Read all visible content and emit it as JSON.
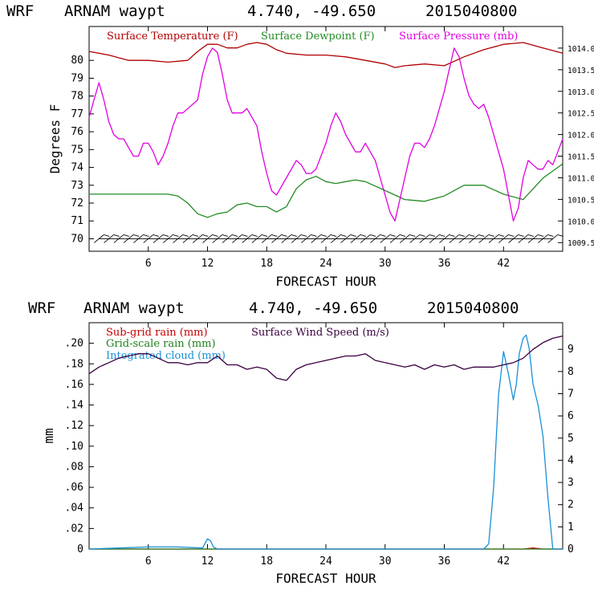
{
  "colors": {
    "temperature": "#b00000",
    "dewpoint": "#228B22",
    "pressure": "#e000e0",
    "subgrid_rain": "#c80000",
    "gridscale_rain": "#208020",
    "cloud": "#1a8fd6",
    "wind": "#3a0040",
    "barb": "#000000"
  },
  "chart_data": [
    {
      "type": "line",
      "header": {
        "model": "WRF",
        "station": "ARNAM waypt",
        "coords": "4.740, -49.650",
        "init": "2015040800"
      },
      "title": "WRF   ARNAM waypt    4.740, -49.650  2015040800",
      "xlabel": "FORECAST HOUR",
      "ylabel": "Degrees F",
      "xlim": [
        0,
        48
      ],
      "ylim": [
        69.3,
        81.9
      ],
      "xticks": [
        6,
        12,
        18,
        24,
        30,
        36,
        42
      ],
      "xtick_labels": [
        "6",
        "12",
        "18",
        "24",
        "30",
        "36",
        "42"
      ],
      "yticks": [
        70,
        71,
        72,
        73,
        74,
        75,
        76,
        77,
        78,
        79,
        80
      ],
      "ytick_labels": [
        "70",
        "71",
        "72",
        "73",
        "74",
        "75",
        "76",
        "77",
        "78",
        "79",
        "80"
      ],
      "y2lim": [
        1009.3,
        1014.5
      ],
      "y2ticks": [
        1009.5,
        1010.0,
        1010.5,
        1011.0,
        1011.5,
        1012.0,
        1012.5,
        1013.0,
        1013.5,
        1014.0
      ],
      "y2tick_labels": [
        "1009.5",
        "1010.0",
        "1010.5",
        "1011.0",
        "1011.5",
        "1012.0",
        "1012.5",
        "1013.0",
        "1013.5",
        "1014.0"
      ],
      "legend": [
        "Surface Temperature (F)",
        "Surface Dewpoint (F)",
        "Surface Pressure (mb)"
      ],
      "series": [
        {
          "name": "Surface Temperature (F)",
          "axis": "left",
          "color_key": "temperature",
          "x": [
            0,
            2,
            4,
            6,
            8,
            10,
            11,
            12,
            13,
            14,
            15,
            16,
            17,
            18,
            19,
            20,
            22,
            24,
            26,
            28,
            30,
            31,
            32,
            34,
            36,
            38,
            40,
            42,
            44,
            46,
            48
          ],
          "values": [
            80.5,
            80.3,
            80.0,
            80.0,
            79.9,
            80.0,
            80.5,
            80.9,
            80.9,
            80.7,
            80.7,
            80.9,
            81.0,
            80.9,
            80.6,
            80.4,
            80.3,
            80.3,
            80.2,
            80.0,
            79.8,
            79.6,
            79.7,
            79.8,
            79.7,
            80.2,
            80.6,
            80.9,
            81.0,
            80.7,
            80.4
          ]
        },
        {
          "name": "Surface Dewpoint (F)",
          "axis": "left",
          "color_key": "dewpoint",
          "x": [
            0,
            2,
            4,
            6,
            8,
            9,
            10,
            11,
            12,
            13,
            14,
            15,
            16,
            17,
            18,
            19,
            20,
            21,
            22,
            23,
            24,
            25,
            26,
            27,
            28,
            30,
            32,
            34,
            36,
            38,
            40,
            42,
            44,
            46,
            48
          ],
          "values": [
            72.5,
            72.5,
            72.5,
            72.5,
            72.5,
            72.4,
            72.0,
            71.4,
            71.2,
            71.4,
            71.5,
            71.9,
            72.0,
            71.8,
            71.8,
            71.5,
            71.8,
            72.8,
            73.3,
            73.5,
            73.2,
            73.1,
            73.2,
            73.3,
            73.2,
            72.7,
            72.2,
            72.1,
            72.4,
            73.0,
            73.0,
            72.5,
            72.2,
            73.4,
            74.2
          ]
        },
        {
          "name": "Surface Pressure (mb)",
          "axis": "right",
          "color_key": "pressure",
          "x": [
            0,
            0.5,
            1,
            1.5,
            2,
            2.5,
            3,
            3.5,
            4,
            4.5,
            5,
            5.5,
            6,
            6.5,
            7,
            7.5,
            8,
            8.5,
            9,
            9.5,
            10,
            10.5,
            11,
            11.5,
            12,
            12.5,
            13,
            13.5,
            14,
            14.5,
            15,
            15.5,
            16,
            16.5,
            17,
            17.5,
            18,
            18.5,
            19,
            19.5,
            20,
            20.5,
            21,
            21.5,
            22,
            22.5,
            23,
            23.5,
            24,
            24.5,
            25,
            25.5,
            26,
            26.5,
            27,
            27.5,
            28,
            28.5,
            29,
            29.5,
            30,
            30.5,
            31,
            31.5,
            32,
            32.5,
            33,
            33.5,
            34,
            34.5,
            35,
            35.5,
            36,
            36.5,
            37,
            37.5,
            38,
            38.5,
            39,
            39.5,
            40,
            40.5,
            41,
            41.5,
            42,
            42.5,
            43,
            43.5,
            44,
            44.5,
            45,
            45.5,
            46,
            46.5,
            47,
            47.5,
            48
          ],
          "values": [
            1012.4,
            1012.8,
            1013.2,
            1012.8,
            1012.3,
            1012.0,
            1011.9,
            1011.9,
            1011.7,
            1011.5,
            1011.5,
            1011.8,
            1011.8,
            1011.6,
            1011.3,
            1011.5,
            1011.8,
            1012.2,
            1012.5,
            1012.5,
            1012.6,
            1012.7,
            1012.8,
            1013.4,
            1013.8,
            1014.0,
            1013.9,
            1013.4,
            1012.8,
            1012.5,
            1012.5,
            1012.5,
            1012.6,
            1012.4,
            1012.2,
            1011.6,
            1011.1,
            1010.7,
            1010.6,
            1010.8,
            1011.0,
            1011.2,
            1011.4,
            1011.3,
            1011.1,
            1011.1,
            1011.2,
            1011.5,
            1011.8,
            1012.2,
            1012.5,
            1012.3,
            1012.0,
            1011.8,
            1011.6,
            1011.6,
            1011.8,
            1011.6,
            1011.4,
            1011.0,
            1010.6,
            1010.2,
            1010.0,
            1010.5,
            1011.0,
            1011.5,
            1011.8,
            1011.8,
            1011.7,
            1011.9,
            1012.2,
            1012.6,
            1013.0,
            1013.5,
            1014.0,
            1013.8,
            1013.3,
            1012.9,
            1012.7,
            1012.6,
            1012.7,
            1012.4,
            1012.0,
            1011.6,
            1011.2,
            1010.6,
            1010.0,
            1010.3,
            1011.0,
            1011.4,
            1011.3,
            1011.2,
            1011.2,
            1011.4,
            1011.3,
            1011.6,
            1011.9
          ]
        }
      ],
      "annotations": [
        "wind barbs along 70 F line, winds from the east"
      ]
    },
    {
      "type": "line",
      "header": {
        "model": "WRF",
        "station": "ARNAM waypt",
        "coords": "4.740, -49.650",
        "init": "2015040800"
      },
      "title": "WRF   ARNAM waypt    4.740, -49.650  2015040800",
      "xlabel": "FORECAST HOUR",
      "ylabel": "mm",
      "xlim": [
        0,
        48
      ],
      "ylim": [
        0,
        0.22
      ],
      "xticks": [
        6,
        12,
        18,
        24,
        30,
        36,
        42
      ],
      "xtick_labels": [
        "6",
        "12",
        "18",
        "24",
        "30",
        "36",
        "42"
      ],
      "yticks": [
        0,
        0.02,
        0.04,
        0.06,
        0.08,
        0.1,
        0.12,
        0.14,
        0.16,
        0.18,
        0.2
      ],
      "ytick_labels": [
        "0",
        ".02",
        ".04",
        ".06",
        ".08",
        ".10",
        ".12",
        ".14",
        ".16",
        ".18",
        ".20"
      ],
      "y2lim": [
        0,
        10.2
      ],
      "y2ticks": [
        0,
        1,
        2,
        3,
        4,
        5,
        6,
        7,
        8,
        9
      ],
      "y2tick_labels": [
        "0",
        "1",
        "2",
        "3",
        "4",
        "5",
        "6",
        "7",
        "8",
        "9"
      ],
      "legend": [
        "Sub-grid rain (mm)",
        "Grid-scale rain (mm)",
        "Integrated cloud (mm)",
        "Surface Wind Speed (m/s)"
      ],
      "series": [
        {
          "name": "Sub-grid rain (mm)",
          "axis": "left",
          "color_key": "subgrid_rain",
          "x": [
            0,
            44,
            45,
            46,
            48
          ],
          "values": [
            0,
            0,
            0.001,
            0,
            0
          ]
        },
        {
          "name": "Grid-scale rain (mm)",
          "axis": "left",
          "color_key": "gridscale_rain",
          "x": [
            0,
            48
          ],
          "values": [
            0,
            0
          ]
        },
        {
          "name": "Integrated cloud (mm)",
          "axis": "left",
          "color_key": "cloud",
          "x": [
            0,
            3,
            6,
            9,
            11.5,
            12,
            12.3,
            12.6,
            13,
            39,
            40,
            40.5,
            41,
            41.5,
            42,
            42.5,
            43,
            43.3,
            43.6,
            44,
            44.3,
            44.6,
            45,
            45.5,
            46,
            46.5,
            47,
            48
          ],
          "values": [
            0,
            0.001,
            0.002,
            0.002,
            0.001,
            0.01,
            0.008,
            0.002,
            0,
            0,
            0,
            0.005,
            0.06,
            0.15,
            0.192,
            0.17,
            0.145,
            0.16,
            0.19,
            0.205,
            0.208,
            0.195,
            0.16,
            0.14,
            0.11,
            0.05,
            0,
            0
          ]
        },
        {
          "name": "Surface Wind Speed (m/s)",
          "axis": "right",
          "color_key": "wind",
          "x": [
            0,
            1,
            2,
            3,
            4,
            5,
            6,
            7,
            8,
            9,
            10,
            11,
            12,
            13,
            14,
            15,
            16,
            17,
            18,
            19,
            20,
            21,
            22,
            23,
            24,
            25,
            26,
            27,
            28,
            29,
            30,
            31,
            32,
            33,
            34,
            35,
            36,
            37,
            38,
            39,
            40,
            41,
            42,
            43,
            44,
            45,
            46,
            47,
            48
          ],
          "values": [
            7.9,
            8.2,
            8.4,
            8.6,
            8.7,
            8.8,
            8.8,
            8.6,
            8.4,
            8.4,
            8.3,
            8.4,
            8.4,
            8.7,
            8.3,
            8.3,
            8.1,
            8.2,
            8.1,
            7.7,
            7.6,
            8.1,
            8.3,
            8.4,
            8.5,
            8.6,
            8.7,
            8.7,
            8.8,
            8.5,
            8.4,
            8.3,
            8.2,
            8.3,
            8.1,
            8.3,
            8.2,
            8.3,
            8.1,
            8.2,
            8.2,
            8.2,
            8.3,
            8.4,
            8.6,
            9.0,
            9.3,
            9.5,
            9.6
          ]
        }
      ]
    }
  ]
}
